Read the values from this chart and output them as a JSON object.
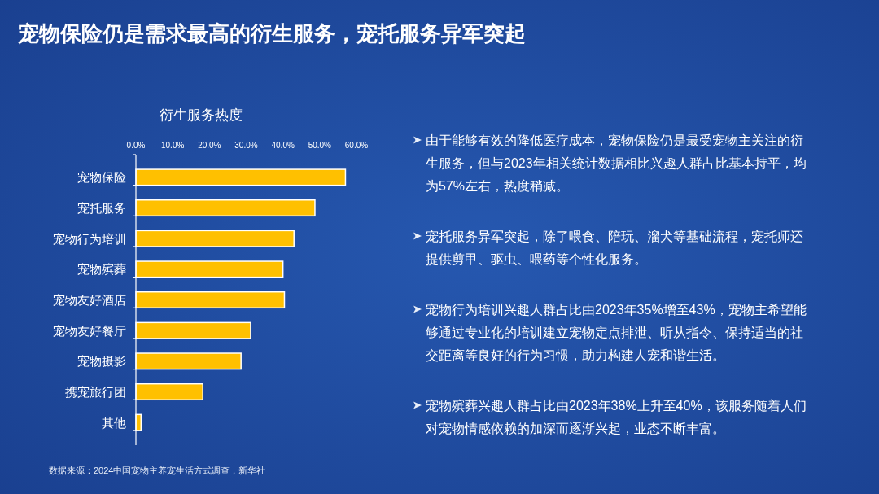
{
  "chart_data": {
    "type": "bar",
    "orientation": "horizontal",
    "title": "宠物保险仍是需求最高的衍生服务，宠托服务异军突起",
    "subtitle": "衍生服务热度",
    "categories": [
      "宠物保险",
      "宠托服务",
      "宠物行为培训",
      "宠物殡葬",
      "宠物友好酒店",
      "宠物友好餐厅",
      "宠物摄影",
      "携宠旅行团",
      "其他"
    ],
    "values": [
      57,
      48.7,
      43,
      40,
      40.4,
      31.2,
      28.6,
      18.2,
      1.4
    ],
    "color": "#ffc000",
    "xlim": [
      0,
      60
    ],
    "xticks": [
      {
        "value": 0,
        "label": "0.0%"
      },
      {
        "value": 10,
        "label": "10.0%"
      },
      {
        "value": 20,
        "label": "20.0%"
      },
      {
        "value": 30,
        "label": "30.0%"
      },
      {
        "value": 40,
        "label": "40.0%"
      },
      {
        "value": 50,
        "label": "50.0%"
      },
      {
        "value": 60,
        "label": "60.0%"
      }
    ],
    "annotations": [
      "由于能够有效的降低医疗成本，宠物保险仍是最受宠物主关注的衍生服务，但与2023年相关统计数据相比兴趣人群占比基本持平，均为57%左右，热度稍减。",
      "宠托服务异军突起，除了喂食、陪玩、溜犬等基础流程，宠托师还提供剪甲、驱虫、喂药等个性化服务。",
      "宠物行为培训兴趣人群占比由2023年35%增至43%，宠物主希望能够通过专业化的培训建立宠物定点排泄、听从指令、保持适当的社交距离等良好的行为习惯，助力构建人宠和谐生活。",
      "宠物殡葬兴趣人群占比由2023年38%上升至40%，该服务随着人们对宠物情感依赖的加深而逐渐兴起，业态不断丰富。",
      "数据来源：2024中国宠物主养宠生活方式调查，新华社"
    ]
  }
}
